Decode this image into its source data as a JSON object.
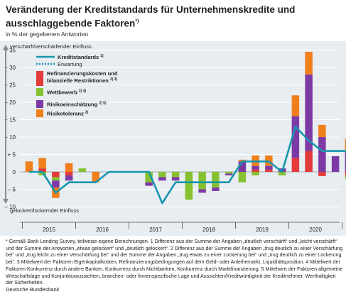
{
  "title": "Veränderung der Kreditstandards für Unternehmenskredite und ausschlaggebende Faktoren",
  "title_note": "*)",
  "subtitle": "in % der gegebenen Antworten",
  "footnote": "* Gemäß Bank Lending Survey, teilweise eigene Berechnungen. 1 Differenz aus der Summe der Angaben „deutlich verschärft“ und „leicht verschärft“ und der Summe der Antworten „etwas gelockert“ und „deutlich gelockert“. 2 Differenz aus der Summe der Angaben „trug deutlich zu einer Verschärfung bei“ und „trug leicht zu einer Verschärfung bei“ und der Summe der Angaben „trug etwas zu einer Lockerung bei“ und „trug deutlich zu einer Lockerung bei“. 3 Mittelwert der Faktoren Eigenkapitalkosten, Refinanzierungsbedingungen auf dem Geld- oder Anleihemarkt, Liquiditätsposition. 4 Mittelwert der Faktoren Konkurrenz durch andere Banken, Konkurrenz durch Nichtbanken, Konkurrenz durch Marktfinanzierung. 5 Mittelwert der Faktoren allgemeine Wirtschaftslage und Konjunkturaussichten, branchen- oder firmenspezifische Lage und Aussichten/Kreditwürdigkeit der Kreditnehmer, Werthaltigkeit der Sicherheiten.",
  "source": "Deutsche Bundesbank",
  "colors": {
    "refinanzierung": "#e33a3a",
    "wettbewerb": "#86c12f",
    "risikoeinschaetzung": "#7d3aa5",
    "risikotoleranz": "#f07f1c",
    "line": "#1596ad",
    "background": "#e8edf1"
  },
  "chart_data": {
    "type": "bar",
    "stacked": true,
    "xlabel": "",
    "ylabel": "",
    "y_top_note": "verschärft/verschärfender Einfluss",
    "y_bottom_note": "gelockert/lockernder Einfluss",
    "ylim": [
      -10,
      35
    ],
    "yticks": [
      35,
      30,
      25,
      20,
      15,
      10,
      5,
      0,
      -5,
      -10
    ],
    "ytick_labels": [
      "+ 35",
      "+ 30",
      "+ 25",
      "+ 20",
      "+ 15",
      "+ 10",
      "+ 5",
      "0",
      "– 5",
      "– 10"
    ],
    "x_start": "2015Q1",
    "x_year_labels": [
      "2015",
      "2016",
      "2017",
      "2018",
      "2019",
      "2020",
      "2021"
    ],
    "categories": [
      "2015Q1",
      "2015Q2",
      "2015Q3",
      "2015Q4",
      "2016Q1",
      "2016Q2",
      "2016Q3",
      "2016Q4",
      "2017Q1",
      "2017Q2",
      "2017Q3",
      "2017Q4",
      "2018Q1",
      "2018Q2",
      "2018Q3",
      "2018Q4",
      "2019Q1",
      "2019Q2",
      "2019Q3",
      "2019Q4",
      "2020Q1",
      "2020Q2",
      "2020Q3",
      "2020Q4",
      "2021Q1",
      "2021Q2"
    ],
    "series": [
      {
        "name": "Refinanzierungskosten und bilanzielle Restriktionen",
        "note": "2) 3)",
        "color_key": "refinanzierung",
        "kind": "bar",
        "values": [
          0,
          1,
          -1.5,
          -1,
          0,
          0,
          0,
          0,
          0,
          0,
          0,
          0,
          0,
          0,
          0,
          0,
          0,
          0.7,
          0.7,
          0,
          4,
          6,
          -1.2,
          0,
          -1,
          0
        ]
      },
      {
        "name": "Wettbewerb",
        "note": "2) 4)",
        "color_key": "wettbewerb",
        "kind": "bar",
        "values": [
          0,
          -1,
          -1,
          0,
          1,
          0,
          0,
          0,
          0,
          -3,
          -1.5,
          -1.5,
          -8,
          -5,
          -4.5,
          -0.5,
          -3,
          -1,
          0,
          -1,
          0,
          0,
          0,
          0,
          -1,
          0
        ]
      },
      {
        "name": "Risikoeinschätzung",
        "note": "2) 5)",
        "color_key": "risikoeinschaetzung",
        "kind": "bar",
        "values": [
          0,
          0,
          -2,
          -1.5,
          0,
          0,
          0,
          0,
          0,
          -1,
          -1,
          -1,
          0,
          -1,
          -1,
          -0.5,
          3,
          1,
          1,
          1,
          12,
          22,
          10,
          4.5,
          6,
          0
        ]
      },
      {
        "name": "Risikotoleranz",
        "note": "2)",
        "color_key": "risikotoleranz",
        "kind": "bar",
        "values": [
          3,
          3,
          -3,
          2.5,
          0,
          -3,
          0,
          0,
          0,
          0,
          0,
          0,
          0,
          0,
          0,
          0,
          0.5,
          3,
          3,
          0,
          6,
          6.5,
          3.5,
          0,
          3.5,
          0
        ]
      },
      {
        "name": "Kreditstandards",
        "note": "1)",
        "color_key": "line",
        "kind": "line",
        "values": [
          0,
          0,
          -6,
          -3,
          -3,
          -3,
          0,
          0,
          0,
          0,
          -9,
          -3,
          -3,
          -3,
          -3,
          -3,
          3,
          3,
          3,
          0,
          13,
          9,
          6,
          6,
          6,
          null
        ]
      },
      {
        "name": "Erwartung",
        "note": "",
        "color_key": "line",
        "kind": "dotted",
        "points": [
          [
            "2021Q1",
            6
          ],
          [
            "2021Q2",
            3
          ]
        ]
      }
    ]
  }
}
